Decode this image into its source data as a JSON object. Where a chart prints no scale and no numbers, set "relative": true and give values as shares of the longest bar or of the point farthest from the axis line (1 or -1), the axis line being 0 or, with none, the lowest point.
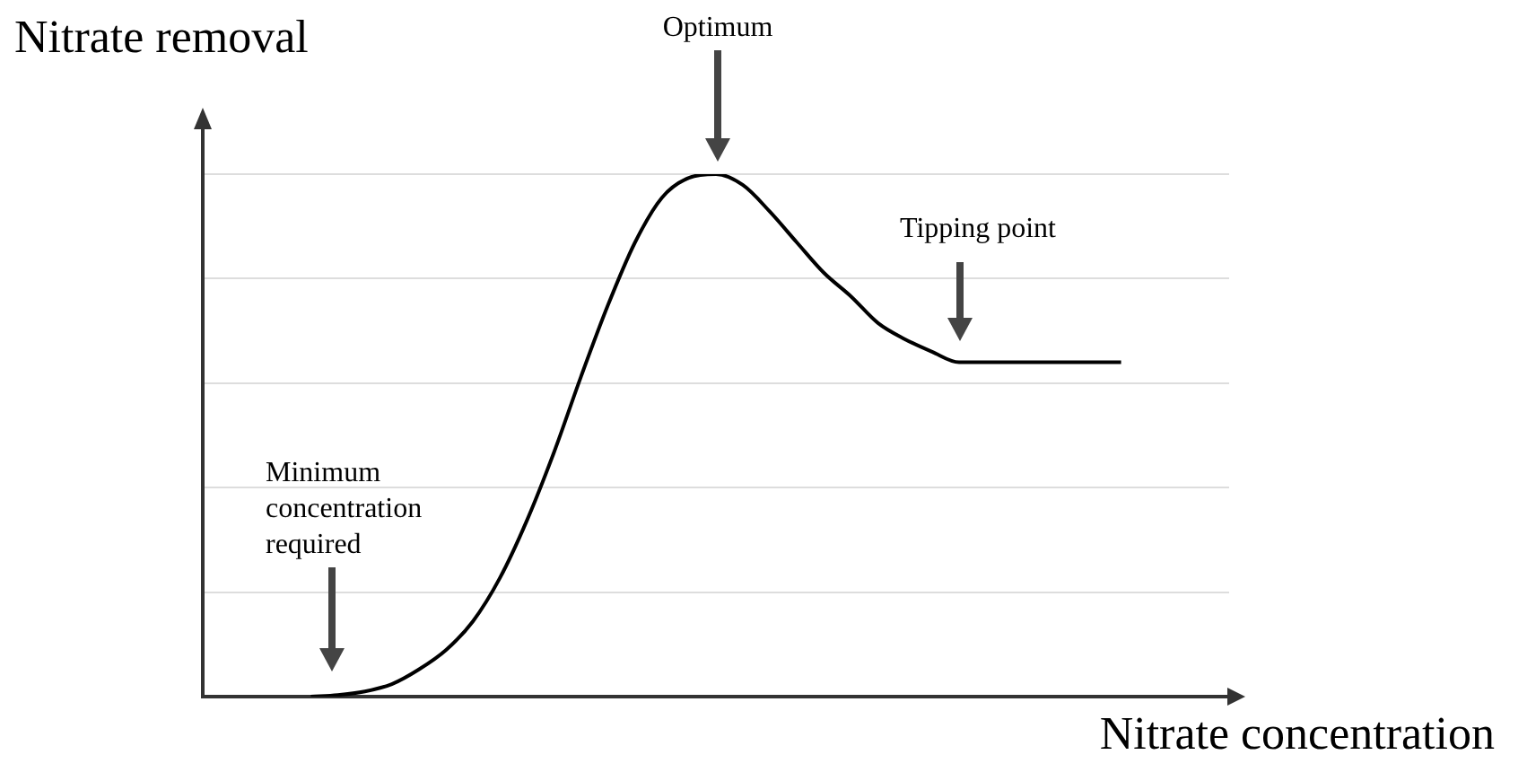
{
  "chart_data": {
    "type": "line",
    "relative": true,
    "xlabel": "Nitrate concentration",
    "ylabel": "Nitrate removal",
    "categories": [
      null,
      null,
      null,
      null,
      null,
      null,
      null,
      null,
      null,
      null,
      null,
      null,
      null,
      null,
      null,
      null,
      null,
      null,
      null,
      null,
      null,
      null,
      null,
      null,
      null,
      null,
      null,
      null,
      null,
      null,
      null,
      null,
      null,
      null,
      null,
      null,
      null,
      null,
      null
    ],
    "values": [
      null,
      null,
      null,
      null,
      0,
      0.003,
      0.01,
      0.024,
      0.052,
      0.089,
      0.144,
      0.227,
      0.337,
      0.467,
      0.612,
      0.749,
      0.869,
      0.955,
      0.993,
      1,
      0.979,
      0.928,
      0.869,
      0.811,
      0.766,
      0.715,
      0.684,
      0.66,
      0.64,
      0.64,
      0.64,
      0.64,
      0.64,
      0.64,
      0.64,
      null,
      null,
      null,
      null
    ],
    "color": "#000000",
    "marker": "none",
    "line_style": "solid",
    "grid": "y",
    "legend": false,
    "annotations": [
      "Optimum",
      "Tipping point",
      "Minimum concentration required"
    ]
  }
}
